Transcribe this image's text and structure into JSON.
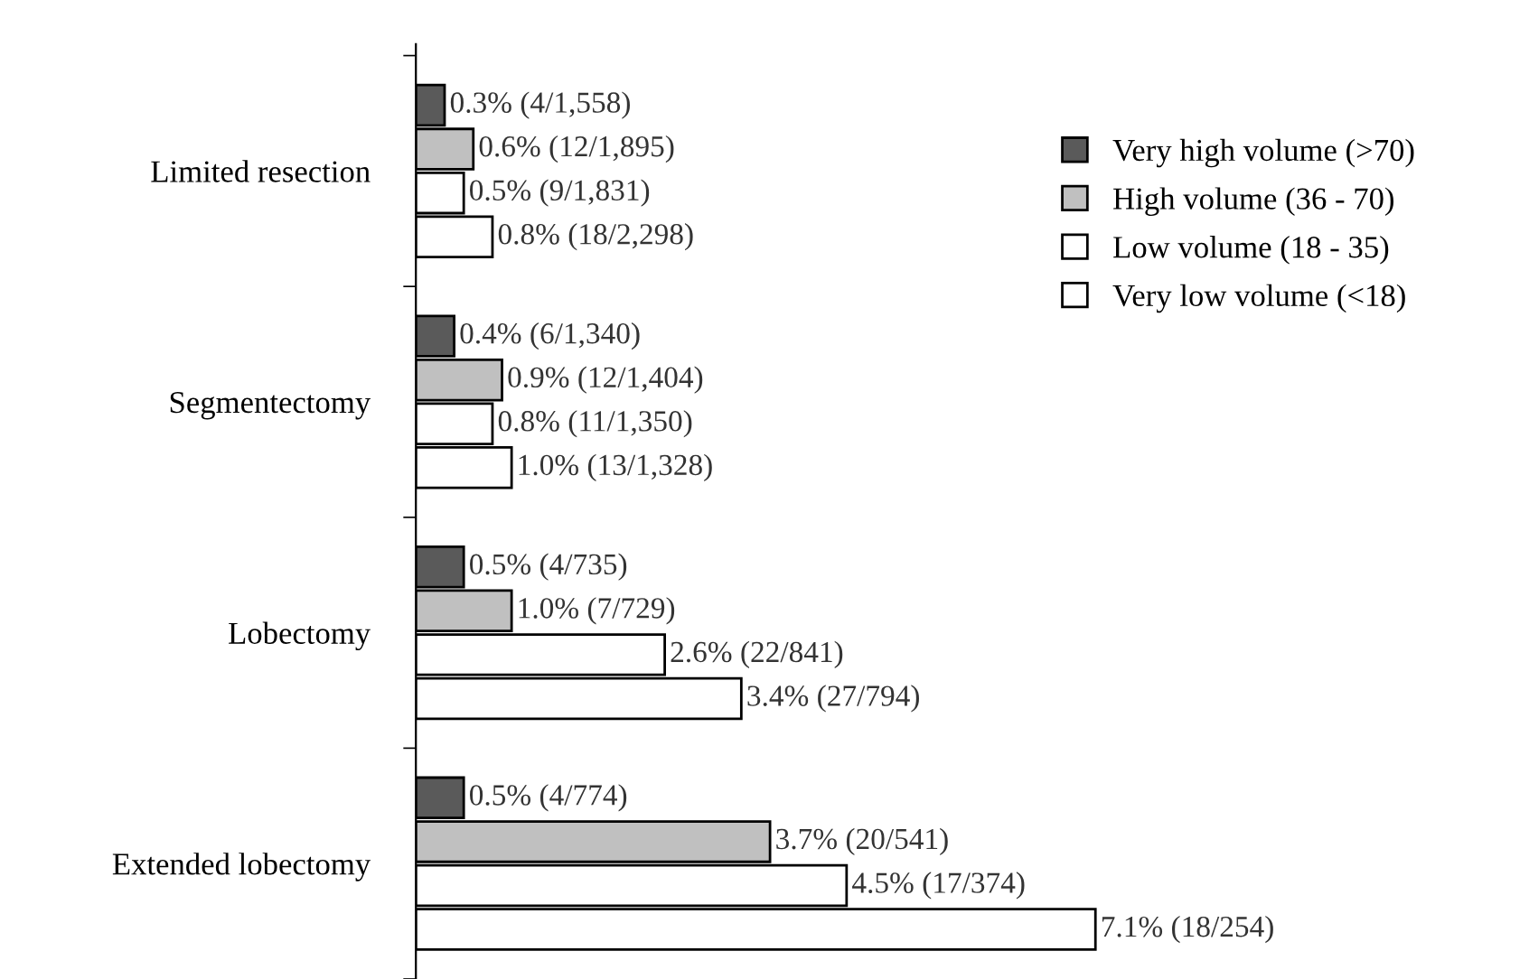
{
  "chart_data": {
    "type": "bar",
    "orientation": "horizontal",
    "categories": [
      "Limited resection",
      "Segmentectomy",
      "Lobectomy",
      "Extended lobectomy"
    ],
    "series": [
      {
        "name": "Very high volume (>70)",
        "color": "#5a5a5a",
        "values": [
          0.3,
          0.4,
          0.5,
          0.5
        ],
        "value_labels": [
          "0.3% (4/1,558)",
          "0.4% (6/1,340)",
          "0.5% (4/735)",
          "0.5% (4/774)"
        ]
      },
      {
        "name": "High volume (36 - 70)",
        "color": "#c0c0c0",
        "values": [
          0.6,
          0.9,
          1.0,
          3.7
        ],
        "value_labels": [
          "0.6% (12/1,895)",
          "0.9% (12/1,404)",
          "1.0% (7/729)",
          "3.7% (20/541)"
        ]
      },
      {
        "name": "Low volume (18 - 35)",
        "color": "#ffffff",
        "values": [
          0.5,
          0.8,
          2.6,
          4.5
        ],
        "value_labels": [
          "0.5% (9/1,831)",
          "0.8% (11/1,350)",
          "2.6% (22/841)",
          "4.5% (17/374)"
        ]
      },
      {
        "name": "Very low volume (<18)",
        "color": "#ffffff",
        "values": [
          0.8,
          1.0,
          3.4,
          7.1
        ],
        "value_labels": [
          "0.8% (18/2,298)",
          "1.0% (13/1,328)",
          "3.4% (27/794)",
          "7.1% (18/254)"
        ]
      }
    ],
    "legend": "right",
    "grid": false,
    "tick_labels": "y"
  }
}
